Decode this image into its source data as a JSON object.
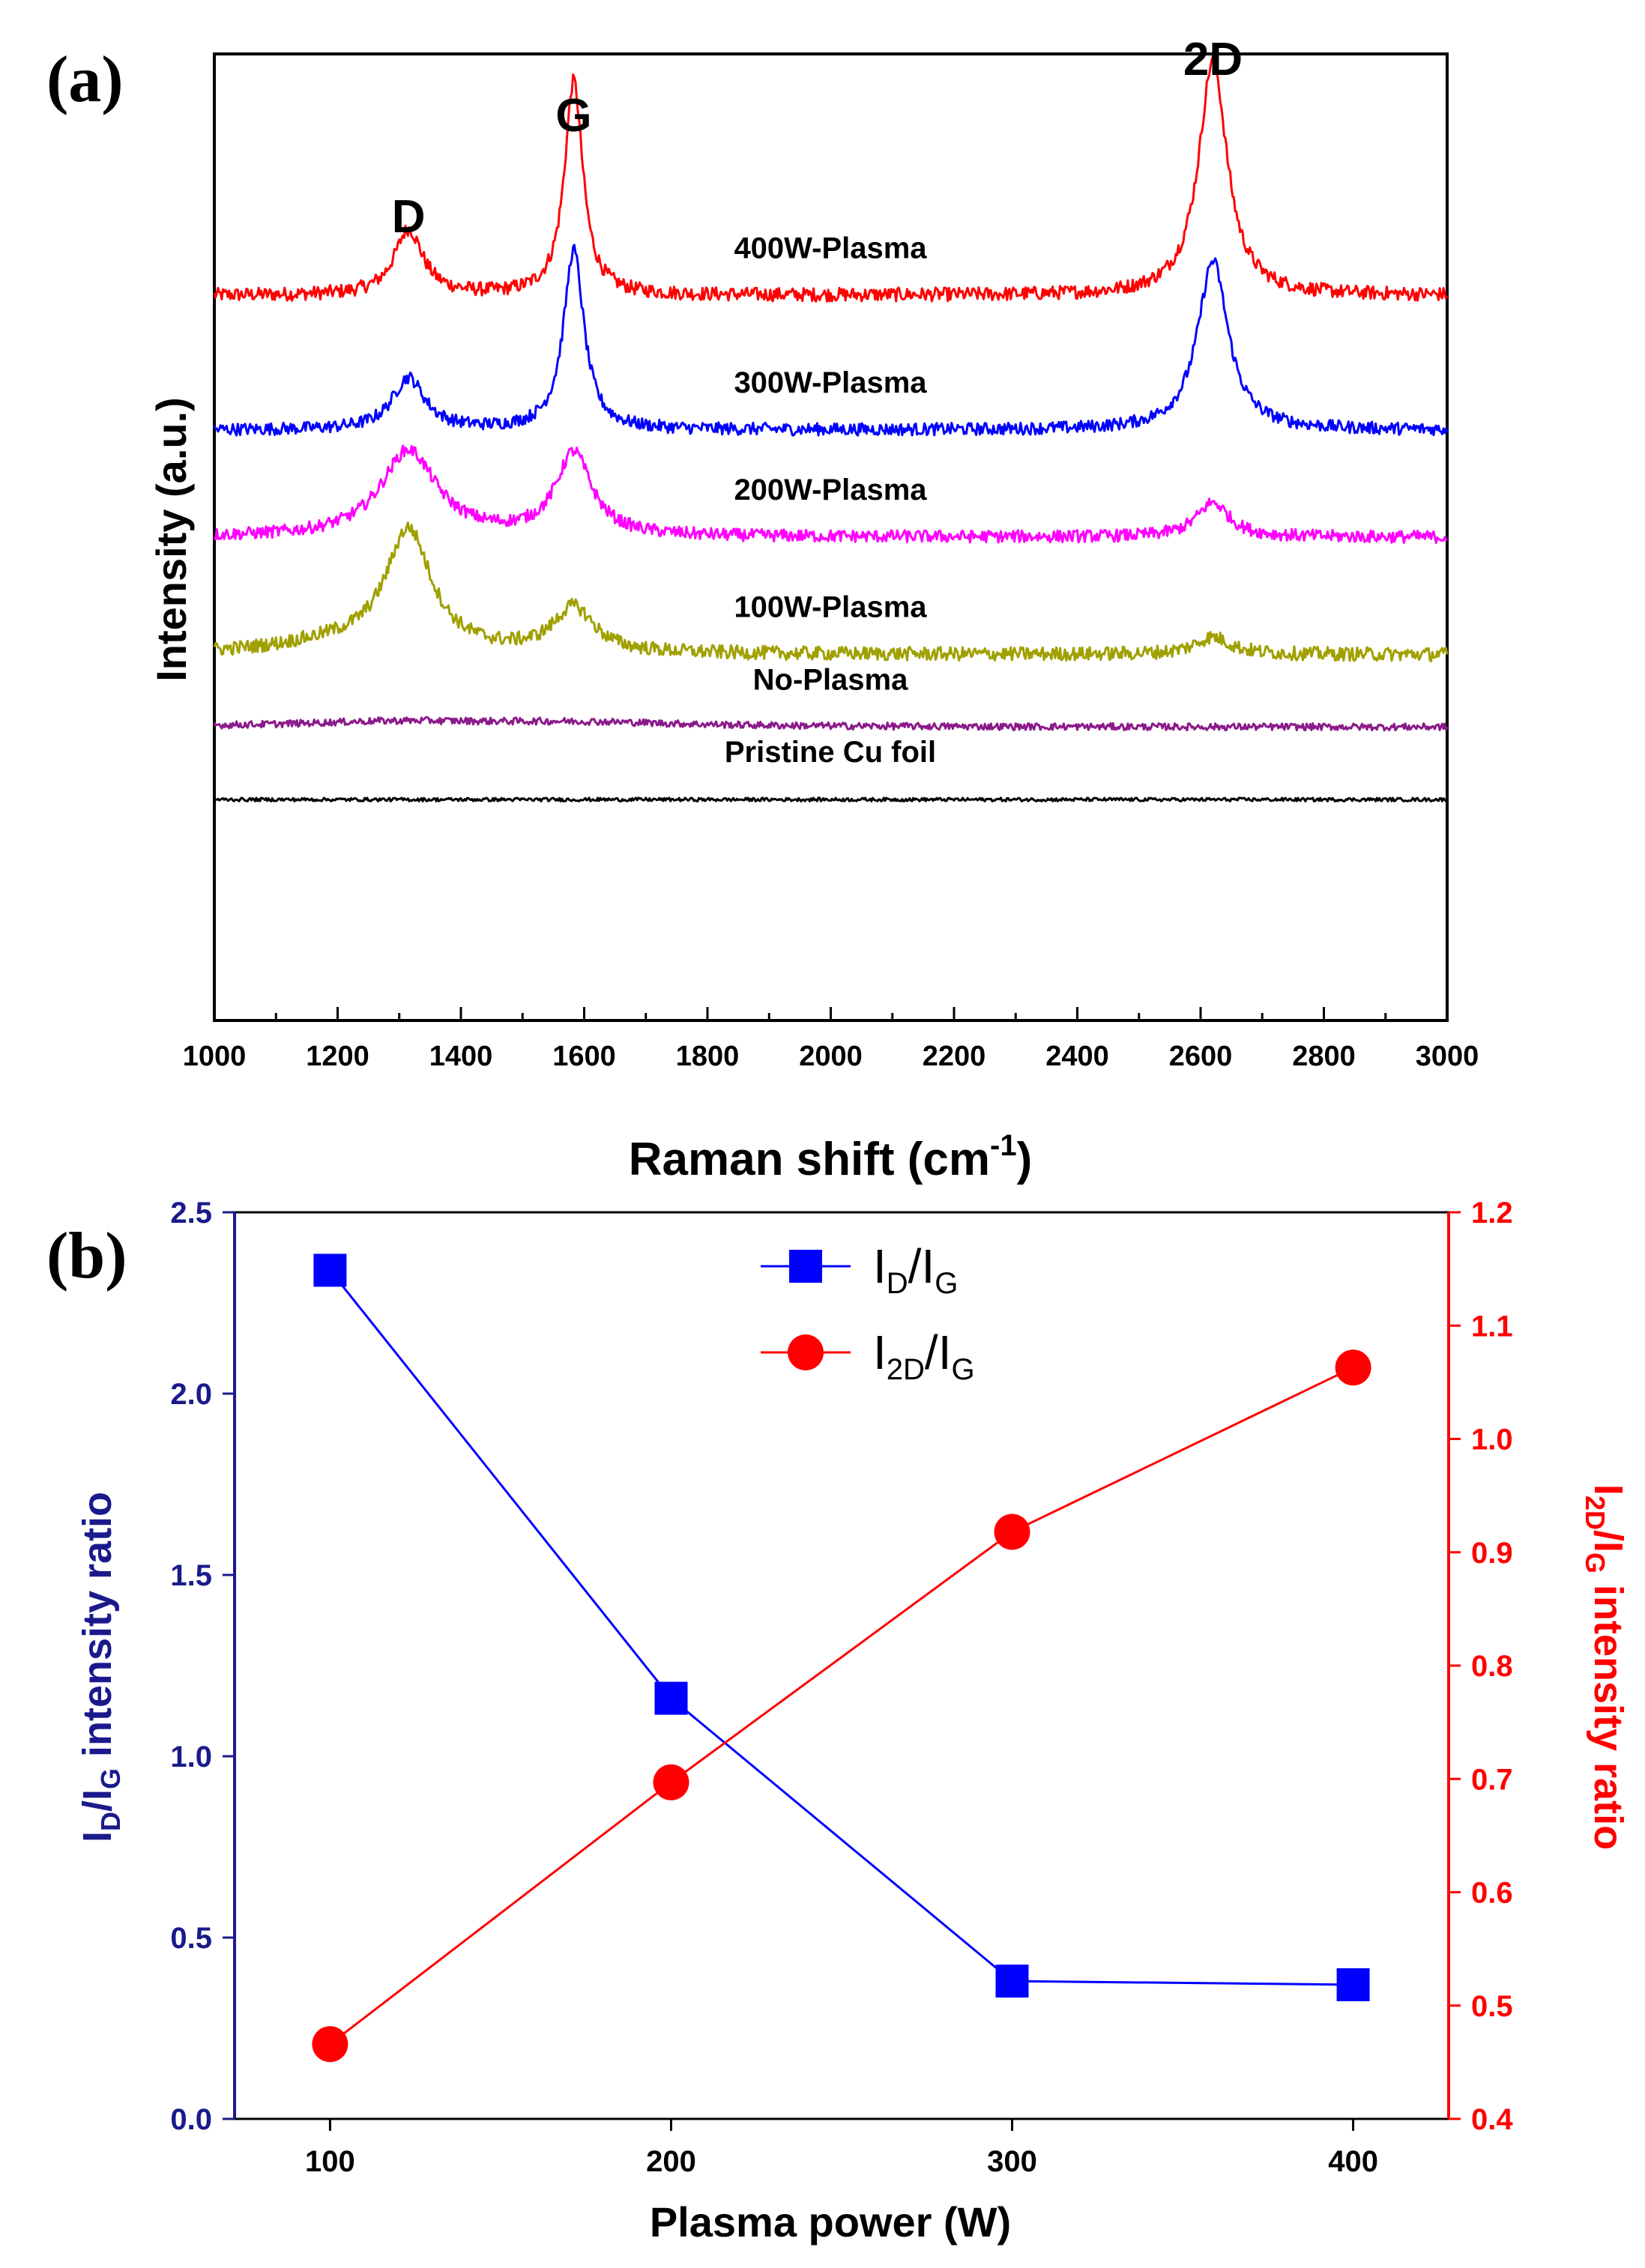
{
  "charts": {
    "a": {
      "panel_label": "(a)",
      "chart_data": {
        "type": "line",
        "xlabel": "Raman shift (cm",
        "xlabel_sup": "-1",
        "xlabel_tail": ")",
        "ylabel": "Intensity (a.u.)",
        "xlim": [
          1000,
          3000
        ],
        "xticks": [
          "1000",
          "1200",
          "1400",
          "1600",
          "1800",
          "2000",
          "2200",
          "2400",
          "2600",
          "2800",
          "3000"
        ],
        "peak_labels": [
          "D",
          "G",
          "2D"
        ],
        "peak_positions": [
          1315,
          1583,
          2620
        ],
        "series": [
          {
            "name": "400W-Plasma",
            "color": "#ff0000",
            "baseline": 21.0,
            "noise": 0.2,
            "peaks": [
              [
                1315,
                1.9,
                28
              ],
              [
                1583,
                6.2,
                18
              ],
              [
                2620,
                6.8,
                28
              ]
            ]
          },
          {
            "name": "300W-Plasma",
            "color": "#0000ff",
            "baseline": 17.1,
            "noise": 0.18,
            "peaks": [
              [
                1315,
                1.5,
                32
              ],
              [
                1583,
                5.2,
                20
              ],
              [
                2620,
                4.9,
                30
              ]
            ]
          },
          {
            "name": "200W-Plasma",
            "color": "#ff00ff",
            "baseline": 14.0,
            "noise": 0.18,
            "peaks": [
              [
                1315,
                2.5,
                55
              ],
              [
                1583,
                2.4,
                35
              ],
              [
                2620,
                1.0,
                32
              ]
            ]
          },
          {
            "name": "100W-Plasma",
            "color": "#a0a000",
            "baseline": 10.6,
            "noise": 0.2,
            "peaks": [
              [
                1315,
                3.5,
                45
              ],
              [
                1583,
                1.3,
                40
              ],
              [
                1200,
                0.3,
                120
              ],
              [
                2620,
                0.5,
                35
              ]
            ]
          },
          {
            "name": "No-Plasma",
            "color": "#8b1a8b",
            "baseline": 8.5,
            "noise": 0.1,
            "peaks": [
              [
                1300,
                0.15,
                200
              ],
              [
                1600,
                0.12,
                200
              ]
            ]
          },
          {
            "name": "Pristine Cu foil",
            "color": "#000000",
            "baseline": 6.4,
            "noise": 0.05,
            "peaks": []
          }
        ]
      }
    },
    "b": {
      "panel_label": "(b)",
      "chart_data": {
        "type": "line",
        "xlabel": "Plasma power (W)",
        "ylabel_left_main": "I",
        "ylabel_left_sub1": "D",
        "ylabel_left_mid": "/I",
        "ylabel_left_sub2": "G",
        "ylabel_left_tail": " intensity ratio",
        "ylabel_right_main": "I",
        "ylabel_right_sub1": "2D",
        "ylabel_right_mid": "/I",
        "ylabel_right_sub2": "G",
        "ylabel_right_tail": " intensity ratio",
        "categories": [
          100,
          200,
          300,
          400
        ],
        "xticks": [
          "100",
          "200",
          "300",
          "400"
        ],
        "xlim": [
          72,
          428
        ],
        "ylim_left": [
          0.0,
          2.5
        ],
        "yticks_left": [
          "0.0",
          "0.5",
          "1.0",
          "1.5",
          "2.0",
          "2.5"
        ],
        "ylim_right": [
          0.4,
          1.2
        ],
        "yticks_right": [
          "0.4",
          "0.5",
          "0.6",
          "0.7",
          "0.8",
          "0.9",
          "1.0",
          "1.1",
          "1.2"
        ],
        "series": [
          {
            "name_main": "I",
            "name_sub1": "D",
            "name_mid": "/I",
            "name_sub2": "G",
            "axis": "left",
            "marker": "square",
            "color": "#0000ff",
            "values": [
              2.34,
              1.16,
              0.38,
              0.37
            ]
          },
          {
            "name_main": "I",
            "name_sub1": "2D",
            "name_mid": "/I",
            "name_sub2": "G",
            "axis": "right",
            "marker": "circle",
            "color": "#ff0000",
            "values": [
              0.466,
              0.697,
              0.918,
              1.063
            ]
          }
        ],
        "left_axis_color": "#1a1a8c",
        "right_axis_color": "#ff0000"
      }
    }
  }
}
